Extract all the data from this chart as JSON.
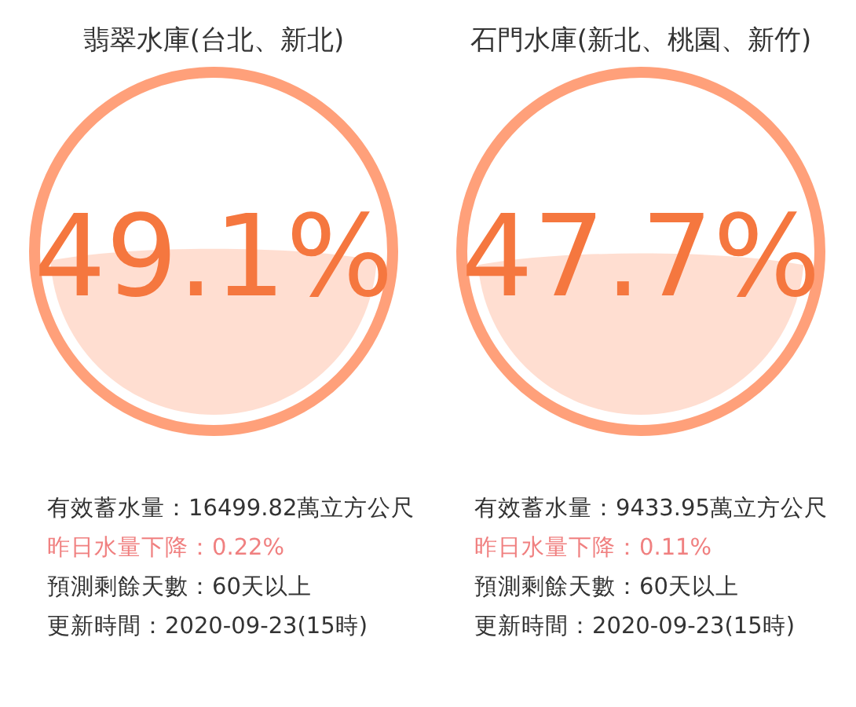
{
  "chart_data": [
    {
      "type": "other",
      "title": "翡翠水庫(台北、新北)",
      "values": [
        49.1
      ],
      "value_labels": [
        "49.1%"
      ],
      "color": "#ffa07a",
      "annotations": [
        "有效蓄水量：16499.82萬立方公尺",
        "昨日水量下降：0.22%",
        "預測剩餘天數：60天以上",
        "更新時間：2020-09-23(15時)"
      ]
    },
    {
      "type": "other",
      "title": "石門水庫(新北、桃園、新竹)",
      "values": [
        47.7
      ],
      "value_labels": [
        "47.7%"
      ],
      "color": "#ffa07a",
      "annotations": [
        "有效蓄水量：9433.95萬立方公尺",
        "昨日水量下降：0.11%",
        "預測剩餘天數：60天以上",
        "更新時間：2020-09-23(15時)"
      ]
    }
  ]
}
